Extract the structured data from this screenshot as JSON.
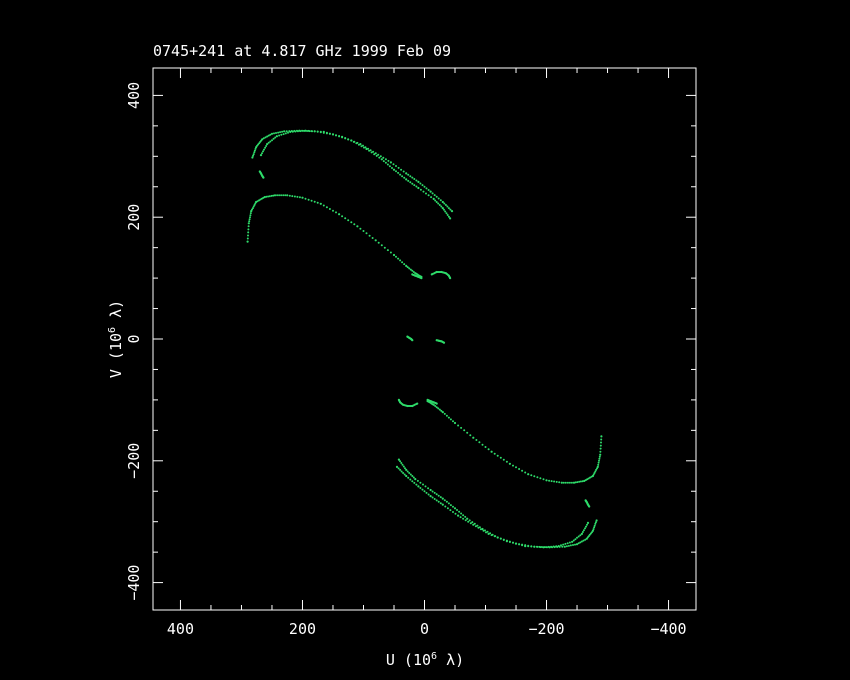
{
  "chart_data": {
    "type": "scatter",
    "title": "0745+241 at 4.817 GHz 1999 Feb 09",
    "xlabel": {
      "text": "U (10",
      "sup": "6",
      "tail": " λ)"
    },
    "ylabel": {
      "text": "V (10",
      "sup": "6",
      "tail": " λ)"
    },
    "xlim": [
      445,
      -445
    ],
    "ylim": [
      -445,
      445
    ],
    "x_ticks": [
      400,
      200,
      0,
      -200,
      -400
    ],
    "x_tick_labels": [
      "400",
      "200",
      "0",
      "−200",
      "−400"
    ],
    "y_ticks": [
      400,
      200,
      0,
      -200,
      -400
    ],
    "y_tick_labels": [
      "400",
      "200",
      "0",
      "−200",
      "−400"
    ],
    "grid": false,
    "point_color": "#2edb6a",
    "background": "#000000",
    "frame_color": "#ffffff",
    "series": [
      {
        "x": [
          290,
          288,
          284,
          276,
          262,
          245,
          225,
          200,
          170,
          140,
          110,
          80,
          50,
          30,
          15,
          5
        ],
        "y": [
          160,
          190,
          210,
          225,
          233,
          236,
          236,
          232,
          222,
          205,
          185,
          162,
          138,
          120,
          108,
          102
        ]
      },
      {
        "x": [
          282,
          276,
          266,
          250,
          230,
          205,
          180,
          150,
          120,
          95,
          70,
          50,
          30,
          10,
          -15,
          -30,
          -42
        ],
        "y": [
          298,
          315,
          328,
          337,
          341,
          342,
          341,
          336,
          326,
          312,
          295,
          278,
          262,
          248,
          230,
          215,
          198
        ]
      },
      {
        "x": [
          268,
          258,
          242,
          220,
          195,
          165,
          135,
          105,
          80,
          55,
          30,
          10,
          -10,
          -30,
          -45
        ],
        "y": [
          302,
          320,
          333,
          340,
          342,
          340,
          332,
          320,
          305,
          290,
          272,
          258,
          242,
          225,
          210
        ]
      },
      {
        "x": [
          270,
          268,
          266,
          264
        ],
        "y": [
          275,
          272,
          268,
          265
        ]
      },
      {
        "x": [
          -12,
          -20,
          -28,
          -35,
          -40,
          -42
        ],
        "y": [
          106,
          110,
          110,
          108,
          104,
          100
        ]
      },
      {
        "x": [
          5,
          10,
          15,
          20
        ],
        "y": [
          100,
          102,
          104,
          106
        ]
      },
      {
        "x": [
          28,
          25,
          22,
          20
        ],
        "y": [
          4,
          2,
          0,
          -2
        ]
      },
      {
        "x": [
          -20,
          -24,
          -28,
          -32
        ],
        "y": [
          -2,
          -3,
          -4,
          -6
        ]
      },
      {
        "x": [
          -290,
          -288,
          -284,
          -276,
          -262,
          -245,
          -225,
          -200,
          -170,
          -140,
          -110,
          -80,
          -50,
          -30,
          -15,
          -5
        ],
        "y": [
          -160,
          -190,
          -210,
          -225,
          -233,
          -236,
          -236,
          -232,
          -222,
          -205,
          -185,
          -162,
          -138,
          -120,
          -108,
          -102
        ]
      },
      {
        "x": [
          -282,
          -276,
          -266,
          -250,
          -230,
          -205,
          -180,
          -150,
          -120,
          -95,
          -70,
          -50,
          -30,
          -10,
          15,
          30,
          42
        ],
        "y": [
          -298,
          -315,
          -328,
          -337,
          -341,
          -342,
          -341,
          -336,
          -326,
          -312,
          -295,
          -278,
          -262,
          -248,
          -230,
          -215,
          -198
        ]
      },
      {
        "x": [
          -268,
          -258,
          -242,
          -220,
          -195,
          -165,
          -135,
          -105,
          -80,
          -55,
          -30,
          -10,
          10,
          30,
          45
        ],
        "y": [
          -302,
          -320,
          -333,
          -340,
          -342,
          -340,
          -332,
          -320,
          -305,
          -290,
          -272,
          -258,
          -242,
          -225,
          -210
        ]
      },
      {
        "x": [
          -270,
          -268,
          -266,
          -264
        ],
        "y": [
          -275,
          -272,
          -268,
          -265
        ]
      },
      {
        "x": [
          12,
          20,
          28,
          35,
          40,
          42
        ],
        "y": [
          -106,
          -110,
          -110,
          -108,
          -104,
          -100
        ]
      },
      {
        "x": [
          -5,
          -10,
          -15,
          -20
        ],
        "y": [
          -100,
          -102,
          -104,
          -106
        ]
      }
    ]
  }
}
